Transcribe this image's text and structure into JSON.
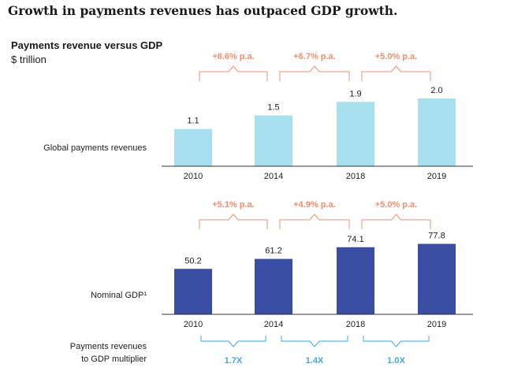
{
  "headline": "Growth in payments revenues has outpaced GDP growth.",
  "chart_data": {
    "type": "bar",
    "title": "Payments revenue versus GDP",
    "unit": "$ trillion",
    "categories": [
      "2010",
      "2014",
      "2018",
      "2019"
    ],
    "series": [
      {
        "name": "Global payments revenues",
        "values": [
          1.1,
          1.5,
          1.9,
          2.0
        ],
        "value_labels": [
          "1.1",
          "1.5",
          "1.9",
          "2.0"
        ],
        "growth_labels": [
          "+8.6% p.a.",
          "+6.7% p.a.",
          "+5.0% p.a."
        ],
        "color": "#a8e0ef"
      },
      {
        "name": "Nominal GDP¹",
        "values": [
          50.2,
          61.2,
          74.1,
          77.8
        ],
        "value_labels": [
          "50.2",
          "61.2",
          "74.1",
          "77.8"
        ],
        "growth_labels": [
          "+5.1% p.a.",
          "+4.9% p.a.",
          "+5.0% p.a."
        ],
        "color": "#3a4fa3"
      }
    ],
    "multiplier": {
      "label": "Payments revenues to GDP multiplier",
      "label_lines": [
        "Payments revenues",
        "to GDP multiplier"
      ],
      "values": [
        "1.7X",
        "1.4X",
        "1.0X"
      ],
      "color": "#3fa9e0"
    },
    "growth_color": "#f28f6b",
    "axis_color": "#333333"
  }
}
